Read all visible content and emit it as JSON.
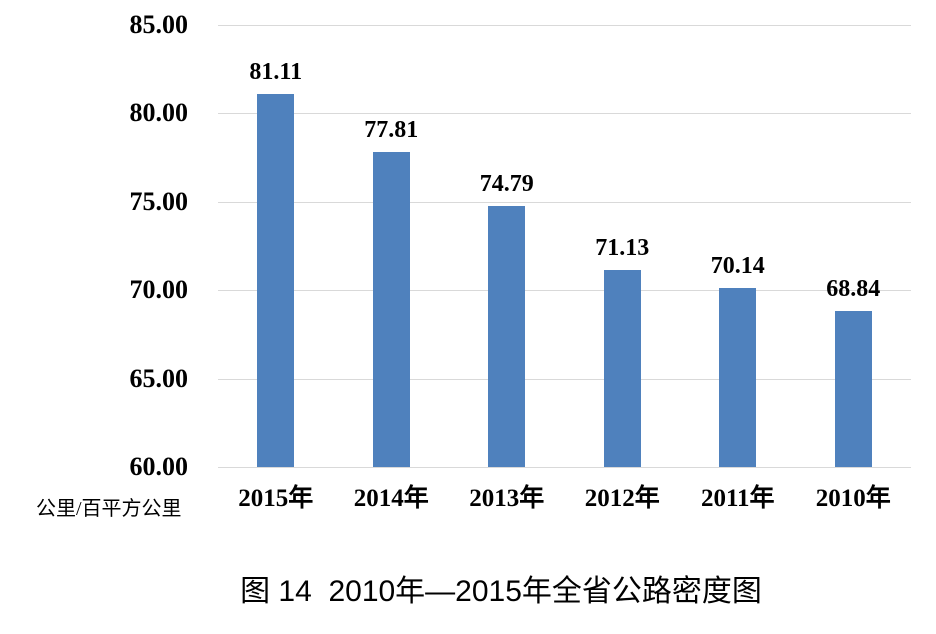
{
  "figure": {
    "unit_label": "公里/百平方公里",
    "caption": "图 14  2010年—2015年全省公路密度图"
  },
  "chart_data": {
    "type": "bar",
    "title": "图 14  2010年—2015年全省公路密度图",
    "categories": [
      "2015年",
      "2014年",
      "2013年",
      "2012年",
      "2011年",
      "2010年"
    ],
    "values": [
      81.11,
      77.81,
      74.79,
      71.13,
      70.14,
      68.84
    ],
    "data_labels": [
      "81.11",
      "77.81",
      "74.79",
      "71.13",
      "70.14",
      "68.84"
    ],
    "xlabel": "",
    "ylabel": "公里/百平方公里",
    "ylim": [
      60,
      85
    ],
    "yticks": [
      85,
      80,
      75,
      70,
      65,
      60
    ],
    "ytick_labels": [
      "85.00",
      "80.00",
      "75.00",
      "70.00",
      "65.00",
      "60.00"
    ],
    "grid": true,
    "legend_position": "none",
    "bar_color": "#4F81BD",
    "gridline_color": "#D9D9D9",
    "text_color": "#000000",
    "background_color": "#FFFFFF"
  }
}
